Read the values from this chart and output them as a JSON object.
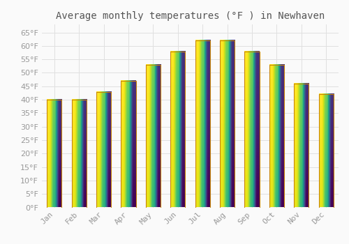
{
  "title": "Average monthly temperatures (°F ) in Newhaven",
  "months": [
    "Jan",
    "Feb",
    "Mar",
    "Apr",
    "May",
    "Jun",
    "Jul",
    "Aug",
    "Sep",
    "Oct",
    "Nov",
    "Dec"
  ],
  "values": [
    40,
    40,
    43,
    47,
    53,
    58,
    62,
    62,
    58,
    53,
    46,
    42
  ],
  "bar_color_top": "#FFC825",
  "bar_color_bottom": "#F5A800",
  "bar_edge_color": "#C8860A",
  "background_color": "#FAFAFA",
  "grid_color": "#E0E0E0",
  "ylim": [
    0,
    68
  ],
  "yticks": [
    0,
    5,
    10,
    15,
    20,
    25,
    30,
    35,
    40,
    45,
    50,
    55,
    60,
    65
  ],
  "title_fontsize": 10,
  "tick_fontsize": 8,
  "tick_color": "#999999",
  "title_color": "#555555",
  "title_font": "monospace",
  "bar_width": 0.6
}
